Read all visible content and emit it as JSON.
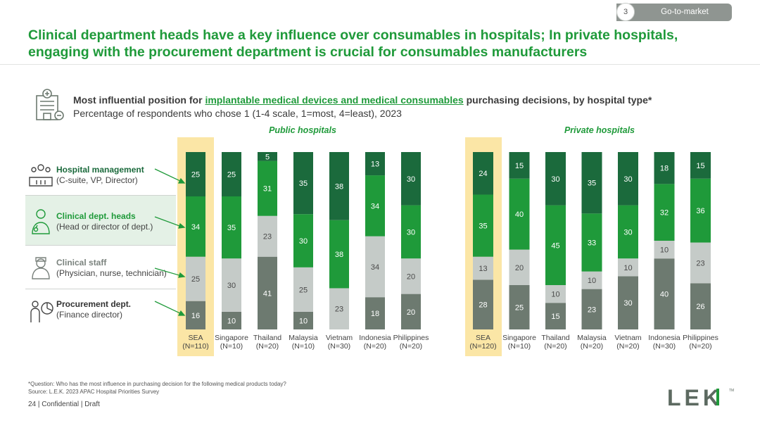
{
  "header": {
    "section_number": "3",
    "section_label": "Go-to-market",
    "title": "Clinical department heads have a key influence over consumables in hospitals; In private hospitals, engaging with the procurement department is crucial for consumables manufacturers"
  },
  "subheader": {
    "lead": "Most influential position for ",
    "highlight": "implantable medical devices and medical consumables",
    "tail": " purchasing decisions, by hospital type*",
    "line2": "Percentage of respondents who chose 1 (1-4 scale, 1=most, 4=least), 2023"
  },
  "legend": [
    {
      "title": "Hospital management",
      "sub": "(C-suite, VP, Director)",
      "icon": "hospital-management-icon"
    },
    {
      "title": "Clinical dept. heads",
      "sub": "(Head or director of dept.)",
      "icon": "doctor-icon"
    },
    {
      "title": "Clinical staff",
      "sub": "(Physician, nurse, technician)",
      "icon": "nurse-icon"
    },
    {
      "title": "Procurement dept.",
      "sub": "(Finance director)",
      "icon": "procurement-icon"
    }
  ],
  "colors": {
    "hospital_management": "#1b6a3c",
    "clinical_heads": "#1f9a3a",
    "clinical_staff": "#c5cbc8",
    "procurement": "#6d7a70",
    "highlight": "#fbe6a6",
    "brand_green": "#1f9a3a"
  },
  "chart_data": [
    {
      "type": "bar",
      "stacked": true,
      "title": "Public hospitals",
      "categories": [
        "SEA",
        "Singapore",
        "Thailand",
        "Malaysia",
        "Vietnam",
        "Indonesia",
        "Philippines"
      ],
      "sample_sizes": [
        "(N=110)",
        "(N=10)",
        "(N=20)",
        "(N=10)",
        "(N=30)",
        "(N=20)",
        "(N=20)"
      ],
      "series": [
        {
          "name": "Procurement dept.",
          "values": [
            16,
            10,
            41,
            10,
            0,
            18,
            20
          ],
          "labels": [
            "16",
            "10",
            "41",
            "10",
            "",
            "18",
            "20"
          ]
        },
        {
          "name": "Clinical staff",
          "values": [
            25,
            30,
            23,
            25,
            23,
            34,
            20
          ],
          "labels": [
            "25",
            "30",
            "23",
            "25",
            "23",
            "34",
            "20"
          ]
        },
        {
          "name": "Clinical dept. heads",
          "values": [
            34,
            35,
            31,
            30,
            38,
            34,
            30
          ],
          "labels": [
            "34",
            "35",
            "31",
            "30",
            "38",
            "34",
            "30"
          ]
        },
        {
          "name": "Hospital management",
          "values": [
            25,
            25,
            5,
            35,
            38,
            13,
            30
          ],
          "labels": [
            "25",
            "25",
            "5",
            "35",
            "38",
            "13",
            "30"
          ]
        }
      ],
      "ylim": [
        0,
        100
      ]
    },
    {
      "type": "bar",
      "stacked": true,
      "title": "Private hospitals",
      "categories": [
        "SEA",
        "Singapore",
        "Thailand",
        "Malaysia",
        "Vietnam",
        "Indonesia",
        "Philippines"
      ],
      "sample_sizes": [
        "(N=120)",
        "(N=10)",
        "(N=20)",
        "(N=20)",
        "(N=20)",
        "(N=30)",
        "(N=20)"
      ],
      "series": [
        {
          "name": "Procurement dept.",
          "values": [
            28,
            25,
            15,
            23,
            30,
            40,
            26
          ],
          "labels": [
            "28",
            "25",
            "15",
            "23",
            "30",
            "40",
            "26"
          ]
        },
        {
          "name": "Clinical staff",
          "values": [
            13,
            20,
            10,
            10,
            10,
            10,
            23
          ],
          "labels": [
            "13",
            "20",
            "10",
            "10",
            "10",
            "10",
            "23"
          ]
        },
        {
          "name": "Clinical dept. heads",
          "values": [
            35,
            40,
            45,
            33,
            30,
            32,
            36
          ],
          "labels": [
            "35",
            "40",
            "45",
            "33",
            "30",
            "32",
            "36"
          ]
        },
        {
          "name": "Hospital management",
          "values": [
            24,
            15,
            30,
            35,
            30,
            18,
            15
          ],
          "labels": [
            "24",
            "15",
            "30",
            "35",
            "30",
            "18",
            "15"
          ]
        }
      ],
      "ylim": [
        0,
        100
      ]
    }
  ],
  "footnote": {
    "question": "*Question: Who has the most influence in purchasing decision for the following medical products today?",
    "source": "Source: L.E.K. 2023 APAC Hospital Priorities Survey"
  },
  "footer": {
    "page": "24",
    "text": " | Confidential | Draft"
  },
  "logo": {
    "letters": "LEK",
    "tm": "TM"
  }
}
